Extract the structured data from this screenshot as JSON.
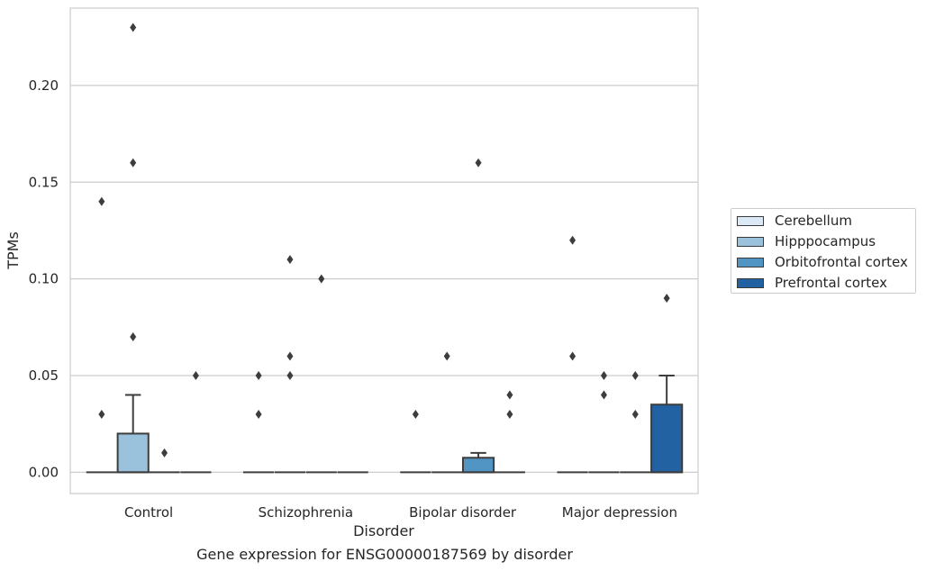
{
  "caption": "Gene expression for ENSG00000187569 by disorder",
  "chart_data": {
    "type": "box",
    "title": "",
    "xlabel": "Disorder",
    "ylabel": "TPMs",
    "ylim": [
      -0.011,
      0.24
    ],
    "yticks": [
      0.0,
      0.05,
      0.1,
      0.15,
      0.2
    ],
    "ytick_labels": [
      "0.00",
      "0.05",
      "0.10",
      "0.15",
      "0.20"
    ],
    "grid": "horizontal",
    "legend_position": "right",
    "categories": [
      "Control",
      "Schizophrenia",
      "Bipolar disorder",
      "Major depression"
    ],
    "series": [
      {
        "name": "Cerebellum",
        "color": "#dbe8f5",
        "boxes": [
          {
            "q1": 0,
            "median": 0,
            "q3": 0,
            "whislo": 0,
            "whishi": 0,
            "fliers": [
              0.03,
              0.14
            ]
          },
          {
            "q1": 0,
            "median": 0,
            "q3": 0,
            "whislo": 0,
            "whishi": 0,
            "fliers": [
              0.03,
              0.05
            ]
          },
          {
            "q1": 0,
            "median": 0,
            "q3": 0,
            "whislo": 0,
            "whishi": 0,
            "fliers": [
              0.03
            ]
          },
          {
            "q1": 0,
            "median": 0,
            "q3": 0,
            "whislo": 0,
            "whishi": 0,
            "fliers": [
              0.06,
              0.12
            ]
          }
        ]
      },
      {
        "name": "Hipppocampus",
        "color": "#9ac2dc",
        "boxes": [
          {
            "q1": 0,
            "median": 0,
            "q3": 0.02,
            "whislo": 0,
            "whishi": 0.04,
            "fliers": [
              0.07,
              0.16,
              0.23
            ]
          },
          {
            "q1": 0,
            "median": 0,
            "q3": 0,
            "whislo": 0,
            "whishi": 0,
            "fliers": [
              0.05,
              0.06,
              0.11
            ]
          },
          {
            "q1": 0,
            "median": 0,
            "q3": 0,
            "whislo": 0,
            "whishi": 0,
            "fliers": [
              0.06
            ]
          },
          {
            "q1": 0,
            "median": 0,
            "q3": 0,
            "whislo": 0,
            "whishi": 0,
            "fliers": [
              0.04,
              0.05
            ]
          }
        ]
      },
      {
        "name": "Orbitofrontal cortex",
        "color": "#5195c4",
        "boxes": [
          {
            "q1": 0,
            "median": 0,
            "q3": 0,
            "whislo": 0,
            "whishi": 0,
            "fliers": [
              0.01
            ]
          },
          {
            "q1": 0,
            "median": 0,
            "q3": 0,
            "whislo": 0,
            "whishi": 0,
            "fliers": [
              0.1
            ]
          },
          {
            "q1": 0,
            "median": 0,
            "q3": 0.0075,
            "whislo": 0,
            "whishi": 0.01,
            "fliers": [
              0.16
            ]
          },
          {
            "q1": 0,
            "median": 0,
            "q3": 0,
            "whislo": 0,
            "whishi": 0,
            "fliers": [
              0.03,
              0.05
            ]
          }
        ]
      },
      {
        "name": "Prefrontal cortex",
        "color": "#2261a2",
        "boxes": [
          {
            "q1": 0,
            "median": 0,
            "q3": 0,
            "whislo": 0,
            "whishi": 0,
            "fliers": [
              0.05
            ]
          },
          {
            "q1": 0,
            "median": 0,
            "q3": 0,
            "whislo": 0,
            "whishi": 0,
            "fliers": []
          },
          {
            "q1": 0,
            "median": 0,
            "q3": 0,
            "whislo": 0,
            "whishi": 0,
            "fliers": [
              0.03,
              0.04
            ]
          },
          {
            "q1": 0,
            "median": 0,
            "q3": 0.035,
            "whislo": 0,
            "whishi": 0.05,
            "fliers": [
              0.09
            ]
          }
        ]
      }
    ]
  }
}
